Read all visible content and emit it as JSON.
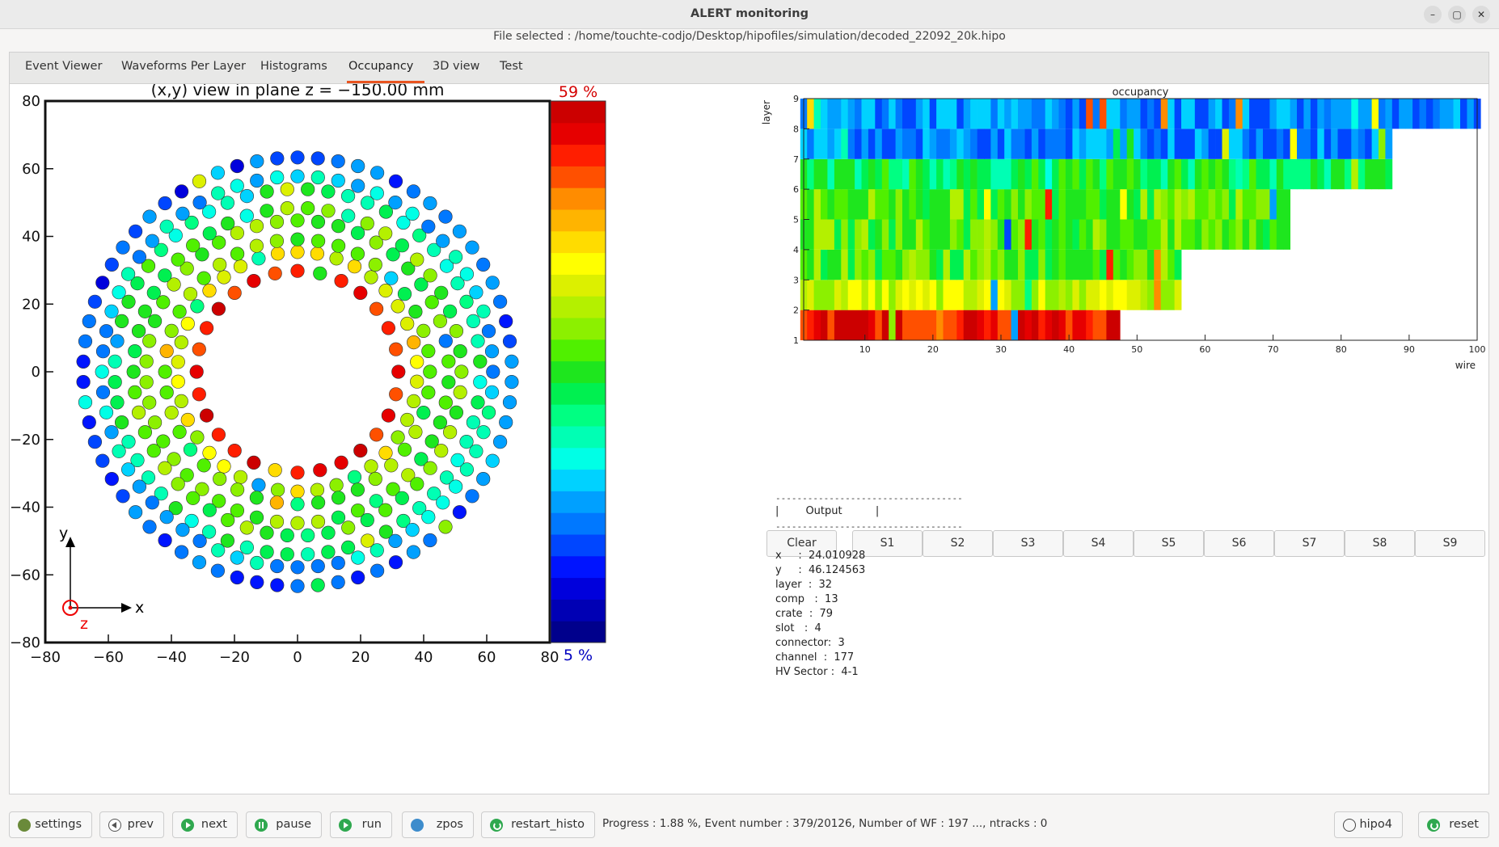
{
  "window": {
    "title": "ALERT monitoring",
    "file_selected": "File selected : /home/touchte-codjo/Desktop/hipofiles/simulation/decoded_22092_20k.hipo",
    "controls": {
      "minimize": "–",
      "maximize": "▢",
      "close": "✕"
    }
  },
  "tabs": [
    "Event Viewer",
    "Waveforms Per Layer",
    "Histograms",
    "Occupancy",
    "3D view",
    "Test"
  ],
  "active_tab": "Occupancy",
  "xy_view": {
    "title": "(x,y) view in plane z = −150.00 mm",
    "xticks": [
      "−80",
      "−60",
      "−40",
      "−20",
      "0",
      "20",
      "40",
      "60",
      "80"
    ],
    "yticks": [
      "80",
      "60",
      "40",
      "20",
      "0",
      "−20",
      "−40",
      "−60",
      "−80"
    ],
    "xlim": [
      -80,
      80
    ],
    "ylim": [
      -80,
      80
    ],
    "axis_x": "x",
    "axis_y": "y",
    "axis_z": "z",
    "scale_max": "59 %",
    "scale_min": "5 %",
    "scale_max_color": "#d40000",
    "scale_min_color": "#0000c0"
  },
  "occupancy": {
    "title": "occupancy",
    "xlabel": "wire",
    "ylabel": "layer",
    "xticks": [
      "10",
      "20",
      "30",
      "40",
      "50",
      "60",
      "70",
      "80",
      "90",
      "100"
    ],
    "yticks": [
      "1",
      "2",
      "3",
      "4",
      "5",
      "6",
      "7",
      "8",
      "9"
    ],
    "xlim": [
      1,
      100
    ],
    "ylim": [
      1,
      9
    ]
  },
  "segment_buttons": [
    "Clear",
    "S1",
    "S2",
    "S3",
    "S4",
    "S5",
    "S6",
    "S7",
    "S8",
    "S9"
  ],
  "output": {
    "rule": "-----------------------------------",
    "header": "|        Output          |",
    "fields": [
      "x     :  24.010928",
      "y     :  46.124563",
      "layer  :  32",
      "comp   :  13",
      "crate  :  79",
      "slot   :  4",
      "connector:  3",
      "channel  :  177",
      "HV Sector :  4-1"
    ]
  },
  "bottom": {
    "buttons": [
      "settings",
      "prev",
      "next",
      "pause",
      "run",
      "zpos",
      "restart_histo"
    ],
    "right_buttons": [
      "hipo4",
      "reset"
    ],
    "status": "Progress : 1.88 %, Event number : 379/20126, Number of WF : 197 ..., ntracks : 0"
  },
  "chart_data": [
    {
      "type": "scatter",
      "title": "(x,y) view in plane z = −150.00 mm",
      "xlabel": "x",
      "ylabel": "y",
      "xlim": [
        -80,
        80
      ],
      "ylim": [
        -80,
        80
      ],
      "rings": [
        {
          "radius": 32,
          "count": 28,
          "dominant_color": "red"
        },
        {
          "radius": 38,
          "count": 38,
          "dominant_color": "yellow-green"
        },
        {
          "radius": 42,
          "count": 40,
          "dominant_color": "green"
        },
        {
          "radius": 48,
          "count": 46,
          "dominant_color": "green"
        },
        {
          "radius": 52,
          "count": 50,
          "dominant_color": "green"
        },
        {
          "radius": 58,
          "count": 56,
          "dominant_color": "blue-green"
        },
        {
          "radius": 62,
          "count": 60,
          "dominant_color": "cyan-blue"
        },
        {
          "radius": 68,
          "count": 66,
          "dominant_color": "blue"
        }
      ],
      "color_scale": {
        "min": "5 %",
        "max": "59 %"
      },
      "legend": "none",
      "grid": false
    },
    {
      "type": "heatmap",
      "title": "occupancy",
      "xlabel": "wire",
      "ylabel": "layer",
      "xlim": [
        1,
        100
      ],
      "ylim": [
        1,
        9
      ],
      "layers": [
        {
          "layer": 1,
          "wires": 47,
          "dominant_color": "red"
        },
        {
          "layer": 2,
          "wires": 56,
          "dominant_color": "yellow-green"
        },
        {
          "layer": 3,
          "wires": 56,
          "dominant_color": "green"
        },
        {
          "layer": 4,
          "wires": 72,
          "dominant_color": "green"
        },
        {
          "layer": 5,
          "wires": 72,
          "dominant_color": "green"
        },
        {
          "layer": 6,
          "wires": 87,
          "dominant_color": "green-cyan"
        },
        {
          "layer": 7,
          "wires": 87,
          "dominant_color": "blue"
        },
        {
          "layer": 8,
          "wires": 100,
          "dominant_color": "blue"
        }
      ],
      "legend": "none",
      "grid": false
    }
  ]
}
